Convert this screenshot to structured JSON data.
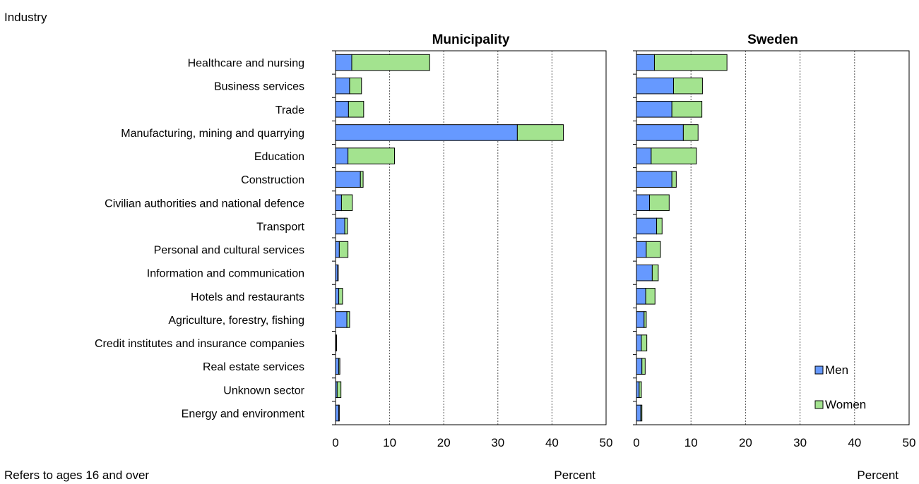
{
  "yaxis_title": "Industry",
  "footnote": "Refers to ages 16 and over",
  "chart_data": [
    {
      "type": "bar",
      "orientation": "horizontal",
      "stacked": true,
      "title": "Municipality",
      "xlabel": "Percent",
      "xlim": [
        0,
        50
      ],
      "xticks": [
        0,
        10,
        20,
        30,
        40,
        50
      ],
      "grid": true,
      "categories": [
        "Healthcare and nursing",
        "Business services",
        "Trade",
        "Manufacturing, mining and quarrying",
        "Education",
        "Construction",
        "Civilian authorities and national defence",
        "Transport",
        "Personal and cultural services",
        "Information and communication",
        "Hotels and restaurants",
        "Agriculture, forestry, fishing",
        "Credit institutes and insurance companies",
        "Real estate services",
        "Unknown sector",
        "Energy and environment"
      ],
      "series": [
        {
          "name": "Men",
          "color": "#6699ff",
          "values": [
            3.0,
            2.6,
            2.4,
            33.6,
            2.3,
            4.6,
            1.1,
            1.7,
            0.7,
            0.4,
            0.6,
            2.1,
            0.1,
            0.6,
            0.3,
            0.6
          ]
        },
        {
          "name": "Women",
          "color": "#a3e38f",
          "values": [
            14.4,
            2.2,
            2.8,
            8.5,
            8.6,
            0.5,
            2.0,
            0.5,
            1.6,
            0.1,
            0.7,
            0.5,
            0.1,
            0.2,
            0.7,
            0.1
          ]
        }
      ]
    },
    {
      "type": "bar",
      "orientation": "horizontal",
      "stacked": true,
      "title": "Sweden",
      "xlabel": "Percent",
      "xlim": [
        0,
        50
      ],
      "xticks": [
        0,
        10,
        20,
        30,
        40,
        50
      ],
      "grid": true,
      "legend_position": "bottom-right",
      "categories": [
        "Healthcare and nursing",
        "Business services",
        "Trade",
        "Manufacturing, mining and quarrying",
        "Education",
        "Construction",
        "Civilian authorities and national defence",
        "Transport",
        "Personal and cultural services",
        "Information and communication",
        "Hotels and restaurants",
        "Agriculture, forestry, fishing",
        "Credit institutes and insurance companies",
        "Real estate services",
        "Unknown sector",
        "Energy and environment"
      ],
      "series": [
        {
          "name": "Men",
          "color": "#6699ff",
          "values": [
            3.3,
            6.8,
            6.5,
            8.6,
            2.7,
            6.5,
            2.4,
            3.7,
            1.8,
            2.9,
            1.7,
            1.4,
            0.9,
            1.0,
            0.5,
            0.8
          ]
        },
        {
          "name": "Women",
          "color": "#a3e38f",
          "values": [
            13.3,
            5.3,
            5.5,
            2.7,
            8.3,
            0.8,
            3.6,
            1.0,
            2.6,
            1.1,
            1.7,
            0.4,
            1.0,
            0.6,
            0.4,
            0.2
          ]
        }
      ]
    }
  ]
}
